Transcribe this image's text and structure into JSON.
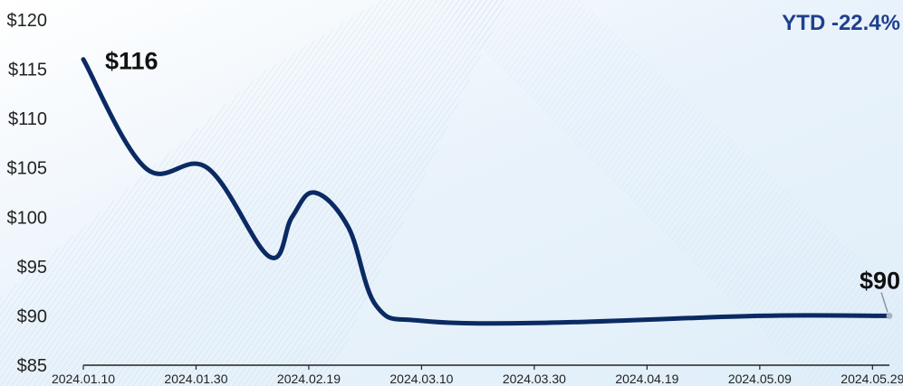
{
  "chart_data": {
    "type": "line",
    "x": [
      "2024.01.10",
      "2024.01.21",
      "2024.02.01",
      "2024.02.12",
      "2024.02.16",
      "2024.02.20",
      "2024.02.26",
      "2024.03.02",
      "2024.03.10",
      "2024.04.01",
      "2024.05.09",
      "2024.06.01"
    ],
    "y": [
      116,
      105,
      105,
      96,
      100,
      102.5,
      99,
      91,
      89.5,
      89.3,
      90,
      90
    ],
    "x_ticks": [
      "2024.01.10",
      "2024.01.30",
      "2024.02.19",
      "2024.03.10",
      "2024.03.30",
      "2024.04.19",
      "2024.05.09",
      "2024.05.29"
    ],
    "y_ticks": [
      "$85",
      "$90",
      "$95",
      "$100",
      "$105",
      "$110",
      "$115",
      "$120"
    ],
    "ylim": [
      85,
      120
    ],
    "xlim": [
      "2024.01.10",
      "2024.06.01"
    ],
    "start_label": "$116",
    "end_label": "$90",
    "annotation": "YTD -22.4%",
    "grid": false,
    "colors": {
      "line": "#0b2a63",
      "annotation": "#1f3f8f",
      "background": "#e9f3fb"
    }
  }
}
